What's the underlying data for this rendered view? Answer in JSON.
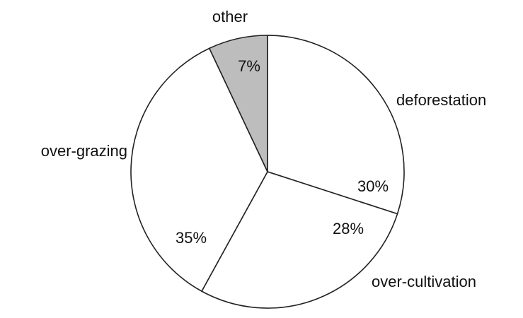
{
  "chart_data": {
    "type": "pie",
    "categories": [
      "deforestation",
      "over-cultivation",
      "over-grazing",
      "other"
    ],
    "values": [
      30,
      28,
      35,
      7
    ],
    "value_labels": [
      "30%",
      "28%",
      "35%",
      "7%"
    ],
    "colors": [
      "#ffffff",
      "#ffffff",
      "#ffffff",
      "#bdbdbd"
    ]
  }
}
